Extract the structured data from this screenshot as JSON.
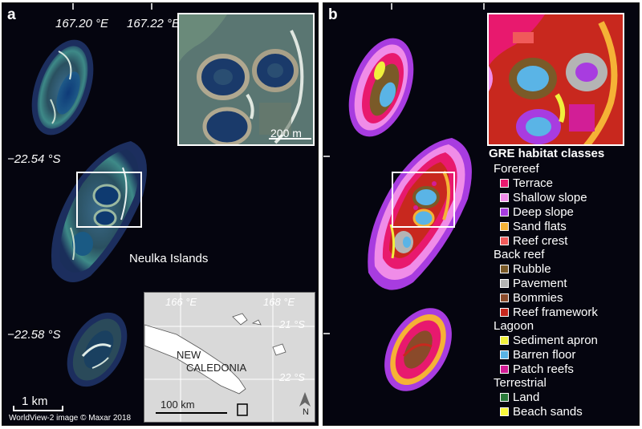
{
  "panels": {
    "a": {
      "label": "a",
      "longitudes": [
        "167.20 °E",
        "167.22 °E"
      ],
      "latitudes": [
        "−22.54 °S",
        "−22.58 °S"
      ],
      "inset_scale": "200 m",
      "place_name": "Neulka Islands",
      "scale_bar": "1 km",
      "credit": "WorldView-2 image © Maxar 2018",
      "locator": {
        "lon_labels": [
          "166 °E",
          "168 °E"
        ],
        "lat_labels": [
          "21 °S",
          "22 °S"
        ],
        "country": [
          "NEW",
          "CALEDONIA"
        ],
        "scale": "100 km",
        "north": "N"
      }
    },
    "b": {
      "label": "b",
      "legend": {
        "title": "GRE habitat classes",
        "groups": [
          {
            "name": "Forereef",
            "items": [
              {
                "label": "Terrace",
                "color": "#e8196e"
              },
              {
                "label": "Shallow slope",
                "color": "#f08ce8"
              },
              {
                "label": "Deep slope",
                "color": "#a83ce0"
              },
              {
                "label": "Sand flats",
                "color": "#f5b236"
              },
              {
                "label": "Reef crest",
                "color": "#f05a5a"
              }
            ]
          },
          {
            "name": "Back reef",
            "items": [
              {
                "label": "Rubble",
                "color": "#7a5a28"
              },
              {
                "label": "Pavement",
                "color": "#b4b4b4"
              },
              {
                "label": "Bommies",
                "color": "#8a4a2a"
              },
              {
                "label": "Reef framework",
                "color": "#c8281e"
              }
            ]
          },
          {
            "name": "Lagoon",
            "items": [
              {
                "label": "Sediment apron",
                "color": "#f0f03c"
              },
              {
                "label": "Barren floor",
                "color": "#5ab4e6"
              },
              {
                "label": "Patch reefs",
                "color": "#d21e96"
              }
            ]
          },
          {
            "name": "Terrestrial",
            "items": [
              {
                "label": "Land",
                "color": "#2a7a3a"
              },
              {
                "label": "Beach sands",
                "color": "#fafa3c"
              }
            ]
          }
        ]
      }
    }
  }
}
